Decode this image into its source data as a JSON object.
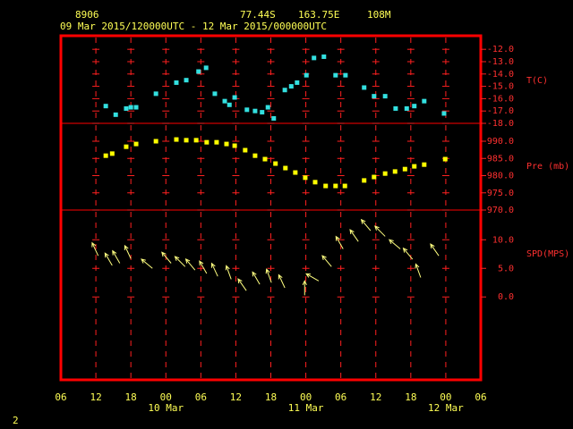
{
  "header": {
    "station": "8906",
    "lat": "77.44S",
    "lon": "163.75E",
    "elevation": "108M",
    "period": "09 Mar 2015/120000UTC - 12 Mar 2015/000000UTC"
  },
  "page_number": "2",
  "x_axis": {
    "xlim": [
      6,
      78
    ],
    "xticks": [
      {
        "value": 6,
        "label": "06"
      },
      {
        "value": 12,
        "label": "12"
      },
      {
        "value": 18,
        "label": "18"
      },
      {
        "value": 24,
        "label": "00"
      },
      {
        "value": 30,
        "label": "06"
      },
      {
        "value": 36,
        "label": "12"
      },
      {
        "value": 42,
        "label": "18"
      },
      {
        "value": 48,
        "label": "00"
      },
      {
        "value": 54,
        "label": "06"
      },
      {
        "value": 60,
        "label": "12"
      },
      {
        "value": 66,
        "label": "18"
      },
      {
        "value": 72,
        "label": "00"
      },
      {
        "value": 78,
        "label": "06"
      }
    ],
    "date_labels": [
      {
        "value": 24,
        "label": "10 Mar"
      },
      {
        "value": 48,
        "label": "11 Mar"
      },
      {
        "value": 72,
        "label": "12 Mar"
      }
    ]
  },
  "chart_data": [
    {
      "type": "scatter",
      "y_label": "T(C)",
      "color": "#33e0e0",
      "ylim": [
        -18,
        -10.9
      ],
      "yticks": [
        {
          "value": -12,
          "label": "-12.0"
        },
        {
          "value": -13,
          "label": "-13.0"
        },
        {
          "value": -14,
          "label": "-14.0"
        },
        {
          "value": -15,
          "label": "-15.0"
        },
        {
          "value": -16,
          "label": "-16.0"
        },
        {
          "value": -17,
          "label": "-17.0"
        },
        {
          "value": -18,
          "label": "-18.0"
        }
      ],
      "x": [
        13.7,
        15.4,
        17.2,
        18.0,
        18.9,
        22.3,
        25.8,
        27.5,
        29.6,
        30.9,
        32.4,
        34.1,
        34.9,
        35.8,
        37.9,
        39.3,
        40.5,
        41.5,
        42.5,
        44.4,
        45.5,
        46.5,
        48.1,
        49.4,
        51.1,
        53.1,
        54.8,
        58.0,
        59.7,
        61.6,
        63.4,
        65.3,
        66.6,
        68.3,
        71.7
      ],
      "values": [
        -16.6,
        -17.3,
        -16.8,
        -16.7,
        -16.7,
        -15.6,
        -14.7,
        -14.5,
        -13.8,
        -13.5,
        -15.6,
        -16.2,
        -16.5,
        -15.9,
        -16.9,
        -17.0,
        -17.1,
        -16.7,
        -17.6,
        -15.3,
        -15.0,
        -14.7,
        -14.1,
        -12.7,
        -12.6,
        -14.1,
        -14.1,
        -15.1,
        -15.8,
        -15.8,
        -16.8,
        -16.8,
        -16.6,
        -16.2,
        -17.2
      ]
    },
    {
      "type": "scatter",
      "y_label": "Pre (mb)",
      "color": "#ffff00",
      "ylim": [
        970,
        995.2
      ],
      "yticks": [
        {
          "value": 970,
          "label": "970.0"
        },
        {
          "value": 975,
          "label": "975.0"
        },
        {
          "value": 980,
          "label": "980.0"
        },
        {
          "value": 985,
          "label": "985.0"
        },
        {
          "value": 990,
          "label": "990.0"
        }
      ],
      "x": [
        13.7,
        14.8,
        17.2,
        18.9,
        22.3,
        25.8,
        27.5,
        29.2,
        31.0,
        32.7,
        34.4,
        35.8,
        37.6,
        39.3,
        41.0,
        42.8,
        44.5,
        46.2,
        47.9,
        49.6,
        51.4,
        53.1,
        54.7,
        58.0,
        59.7,
        61.6,
        63.3,
        65.0,
        66.6,
        68.3,
        71.9
      ],
      "values": [
        985.8,
        986.4,
        988.4,
        989.2,
        990.0,
        990.5,
        990.3,
        990.3,
        989.7,
        989.7,
        989.2,
        988.7,
        987.4,
        985.8,
        984.8,
        983.5,
        982.2,
        980.9,
        979.4,
        978.1,
        977.0,
        977.0,
        977.0,
        978.6,
        979.6,
        980.6,
        981.2,
        981.9,
        982.7,
        983.2,
        984.8
      ]
    },
    {
      "type": "vector",
      "y_label": "SPD(MPS)",
      "color": "#ffff80",
      "ylim": [
        -14.5,
        15.2
      ],
      "yticks": [
        {
          "value": 0,
          "label": "0.0"
        },
        {
          "value": 5,
          "label": "5.0"
        },
        {
          "value": 10,
          "label": "10.0"
        }
      ],
      "x": [
        12.4,
        14.8,
        16.1,
        18.0,
        21.7,
        24.9,
        27.3,
        29.0,
        31.0,
        32.9,
        35.2,
        37.8,
        40.1,
        42.1,
        44.4,
        47.8,
        50.2,
        52.4,
        54.4,
        57.0,
        59.1,
        61.6,
        64.2,
        66.3,
        67.7,
        70.8
      ],
      "values": [
        7.2,
        5.5,
        5.9,
        6.7,
        5.0,
        5.9,
        5.3,
        4.7,
        4.1,
        3.6,
        3.1,
        1.1,
        2.2,
        2.5,
        1.6,
        0.3,
        2.8,
        5.3,
        8.4,
        9.7,
        11.6,
        10.6,
        8.4,
        6.6,
        3.4,
        7.2
      ],
      "directions": [
        335,
        330,
        330,
        335,
        310,
        320,
        315,
        320,
        330,
        335,
        340,
        325,
        330,
        340,
        335,
        0,
        300,
        320,
        330,
        325,
        320,
        315,
        310,
        320,
        340,
        325
      ]
    }
  ]
}
